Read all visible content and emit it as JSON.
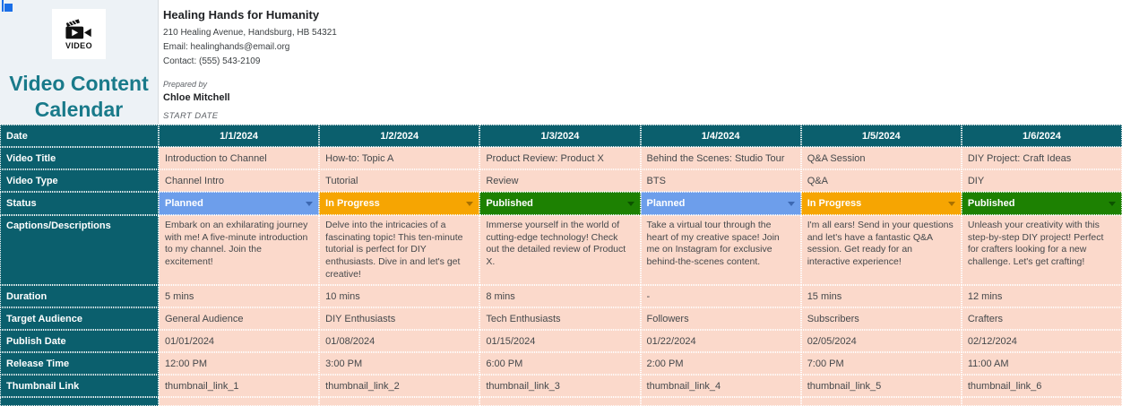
{
  "sidebar": {
    "logo_text": "VIDEO",
    "title_line1": "Video Content",
    "title_line2": "Calendar"
  },
  "header": {
    "org_name": "Healing Hands for Humanity",
    "address": "210 Healing Avenue, Handsburg, HB 54321",
    "email": "Email: healinghands@email.org",
    "contact": "Contact: (555) 543-2109",
    "prepared_by_label": "Prepared by",
    "prepared_by_name": "Chloe Mitchell",
    "start_date_label": "START DATE"
  },
  "colors": {
    "brand_teal": "#197a8a",
    "table_header_teal": "#0b5f6d",
    "cell_peach": "#fbd9cb",
    "collab_cursor_blue": "#1a6fe8",
    "status": {
      "Planned": {
        "bg": "#6d9eeb",
        "arrow": "#3c68b2"
      },
      "In Progress": {
        "bg": "#f6a502",
        "arrow": "#a87000"
      },
      "Published": {
        "bg": "#1d8102",
        "arrow": "#0c5200"
      }
    }
  },
  "table": {
    "rows": [
      {
        "header": "Date",
        "type": "date",
        "values": [
          "1/1/2024",
          "1/2/2024",
          "1/3/2024",
          "1/4/2024",
          "1/5/2024",
          "1/6/2024"
        ]
      },
      {
        "header": "Video Title",
        "type": "text",
        "values": [
          "Introduction to Channel",
          "How-to: Topic A",
          "Product Review: Product X",
          "Behind the Scenes: Studio Tour",
          "Q&A Session",
          "DIY Project: Craft Ideas"
        ]
      },
      {
        "header": "Video Type",
        "type": "text",
        "values": [
          "Channel Intro",
          "Tutorial",
          "Review",
          "BTS",
          "Q&A",
          "DIY"
        ]
      },
      {
        "header": "Status",
        "type": "status",
        "values": [
          "Planned",
          "In Progress",
          "Published",
          "Planned",
          "In Progress",
          "Published"
        ]
      },
      {
        "header": "Captions/Descriptions",
        "type": "caption",
        "values": [
          "Embark on an exhilarating journey with me! A five-minute introduction to my channel. Join the excitement!",
          "Delve into the intricacies of a fascinating topic! This ten-minute tutorial is perfect for DIY enthusiasts. Dive in and let's get creative!",
          "Immerse yourself in the world of cutting-edge technology! Check out the detailed review of Product X.",
          "Take a virtual tour through the heart of my creative space! Join me on Instagram for exclusive behind-the-scenes content.",
          "I'm all ears! Send in your questions and let's have a fantastic Q&A session. Get ready for an interactive experience!",
          "Unleash your creativity with this step-by-step DIY project! Perfect for crafters looking for a new challenge. Let's get crafting!"
        ]
      },
      {
        "header": "Duration",
        "type": "text",
        "values": [
          "5 mins",
          "10 mins",
          "8 mins",
          "-",
          "15 mins",
          "12 mins"
        ]
      },
      {
        "header": "Target Audience",
        "type": "text",
        "values": [
          "General Audience",
          "DIY Enthusiasts",
          "Tech Enthusiasts",
          "Followers",
          "Subscribers",
          "Crafters"
        ]
      },
      {
        "header": "Publish Date",
        "type": "text",
        "values": [
          "01/01/2024",
          "01/08/2024",
          "01/15/2024",
          "01/22/2024",
          "02/05/2024",
          "02/12/2024"
        ]
      },
      {
        "header": "Release Time",
        "type": "text",
        "values": [
          "12:00 PM",
          "3:00 PM",
          "6:00 PM",
          "2:00 PM",
          "7:00 PM",
          "11:00 AM"
        ]
      },
      {
        "header": "Thumbnail Link",
        "type": "text",
        "values": [
          "thumbnail_link_1",
          "thumbnail_link_2",
          "thumbnail_link_3",
          "thumbnail_link_4",
          "thumbnail_link_5",
          "thumbnail_link_6"
        ]
      },
      {
        "header": "",
        "type": "partial",
        "values": [
          "",
          "",
          "",
          "",
          "",
          ""
        ]
      }
    ]
  }
}
